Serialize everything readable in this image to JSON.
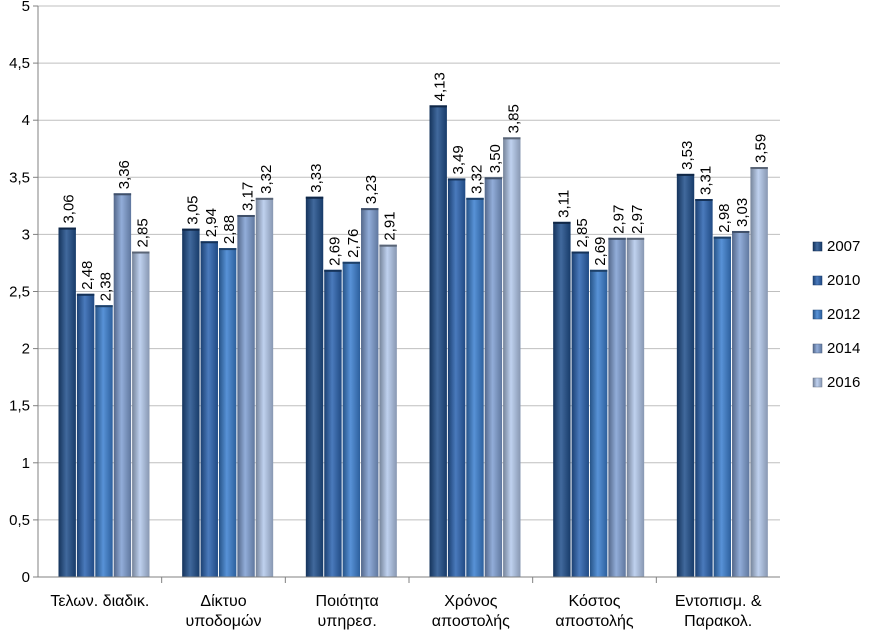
{
  "chart_data": {
    "type": "bar",
    "title": "",
    "xlabel": "",
    "ylabel": "",
    "ylim": [
      0,
      5
    ],
    "yticks": [
      0,
      0.5,
      1,
      1.5,
      2,
      2.5,
      3,
      3.5,
      4,
      4.5,
      5
    ],
    "ytick_labels": [
      "0",
      "0,5",
      "1",
      "1,5",
      "2",
      "2,5",
      "3",
      "3,5",
      "4",
      "4,5",
      "5"
    ],
    "grid": true,
    "legend_position": "right",
    "categories": [
      [
        "Τελων. διαδικ."
      ],
      [
        "Δίκτυο",
        "υποδομών"
      ],
      [
        "Ποιότητα",
        "υπηρεσ."
      ],
      [
        "Χρόνος",
        "αποστολής"
      ],
      [
        "Κόστος",
        "αποστολής"
      ],
      [
        "Εντοπισμ. &",
        "Παρακολ."
      ]
    ],
    "series": [
      {
        "name": "2007",
        "color": "#1f4e8c",
        "values": [
          3.06,
          3.05,
          3.33,
          4.13,
          3.11,
          3.53
        ],
        "labels": [
          "3,06",
          "3,05",
          "3,33",
          "4,13",
          "3,11",
          "3,53"
        ]
      },
      {
        "name": "2010",
        "color": "#2a63b0",
        "values": [
          2.48,
          2.94,
          2.69,
          3.49,
          2.85,
          3.31
        ],
        "labels": [
          "2,48",
          "2,94",
          "2,69",
          "3,49",
          "2,85",
          "3,31"
        ]
      },
      {
        "name": "2012",
        "color": "#3a7fd0",
        "values": [
          2.38,
          2.88,
          2.76,
          3.32,
          2.69,
          2.98
        ],
        "labels": [
          "2,38",
          "2,88",
          "2,76",
          "3,32",
          "2,69",
          "2,98"
        ]
      },
      {
        "name": "2014",
        "color": "#7f9fd2",
        "values": [
          3.36,
          3.17,
          3.23,
          3.5,
          2.97,
          3.03
        ],
        "labels": [
          "3,36",
          "3,17",
          "3,23",
          "3,50",
          "2,97",
          "3,03"
        ]
      },
      {
        "name": "2016",
        "color": "#b4c9ec",
        "values": [
          2.85,
          3.32,
          2.91,
          3.85,
          2.97,
          3.59
        ],
        "labels": [
          "2,85",
          "3,32",
          "2,91",
          "3,85",
          "2,97",
          "3,59"
        ]
      }
    ]
  }
}
